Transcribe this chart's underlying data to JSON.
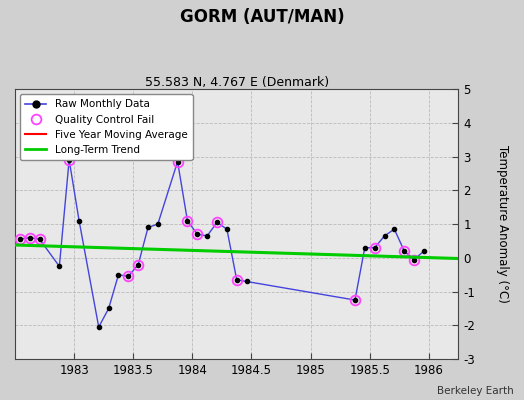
{
  "title": "GORM (AUT/MAN)",
  "subtitle": "55.583 N, 4.767 E (Denmark)",
  "ylabel": "Temperature Anomaly (°C)",
  "credit": "Berkeley Earth",
  "xlim": [
    1982.5,
    1986.25
  ],
  "ylim": [
    -3,
    5
  ],
  "yticks": [
    -3,
    -2,
    -1,
    0,
    1,
    2,
    3,
    4,
    5
  ],
  "xticks": [
    1983,
    1983.5,
    1984,
    1984.5,
    1985,
    1985.5,
    1986
  ],
  "fig_bg": "#d0d0d0",
  "plot_bg": "#e8e8e8",
  "raw_x": [
    1982.542,
    1982.625,
    1982.708,
    1982.875,
    1982.958,
    1983.042,
    1983.208,
    1983.292,
    1983.375,
    1983.458,
    1983.542,
    1983.625,
    1983.708,
    1983.875,
    1983.958,
    1984.042,
    1984.125,
    1984.208,
    1984.292,
    1984.375,
    1984.458,
    1985.375,
    1985.458,
    1985.542,
    1985.625,
    1985.708,
    1985.792,
    1985.875,
    1985.958
  ],
  "raw_y": [
    0.55,
    0.6,
    0.55,
    -0.25,
    2.9,
    1.1,
    -2.05,
    -1.5,
    -0.5,
    -0.55,
    -0.2,
    0.9,
    1.0,
    2.85,
    1.1,
    0.7,
    0.65,
    1.05,
    0.85,
    -0.65,
    -0.7,
    -1.25,
    0.3,
    0.3,
    0.65,
    0.85,
    0.2,
    -0.05,
    0.2
  ],
  "qc_fail_x": [
    1982.542,
    1982.625,
    1982.708,
    1982.958,
    1983.458,
    1983.542,
    1983.875,
    1983.958,
    1984.042,
    1984.208,
    1984.375,
    1985.375,
    1985.542,
    1985.792,
    1985.875
  ],
  "qc_fail_y": [
    0.55,
    0.6,
    0.55,
    2.9,
    -0.55,
    -0.2,
    2.85,
    1.1,
    0.7,
    1.05,
    -0.65,
    -1.25,
    0.3,
    0.2,
    -0.05
  ],
  "trend_x": [
    1982.5,
    1986.25
  ],
  "trend_y": [
    0.38,
    -0.02
  ],
  "raw_line_color": "#4444dd",
  "raw_marker_color": "#000000",
  "qc_marker_color": "#ff44ff",
  "trend_color": "#00cc00",
  "moving_avg_color": "#ff0000",
  "grid_color": "#bbbbbb"
}
